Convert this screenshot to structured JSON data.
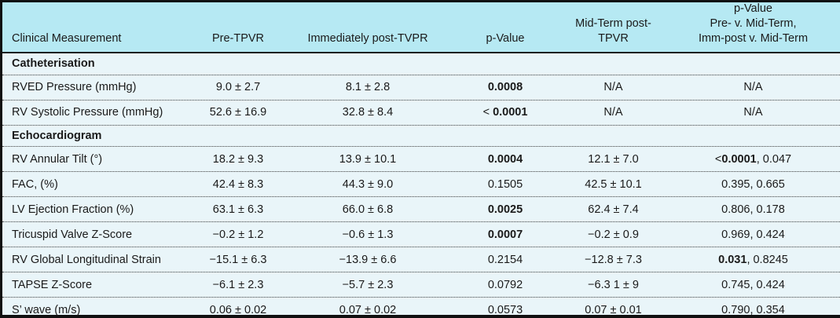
{
  "colors": {
    "header_background": "#b6e9f3",
    "body_background": "#e9f5f9",
    "border": "#101010",
    "text": "#1a1a1a"
  },
  "table": {
    "columns": [
      {
        "label": "Clinical Measurement"
      },
      {
        "label": "Pre-TPVR"
      },
      {
        "label": "Immediately post-TVPR"
      },
      {
        "label": "p-Value"
      },
      {
        "label": "Mid-Term post-TPVR"
      },
      {
        "label": "p-Value\nPre- v. Mid-Term,\nImm-post v. Mid-Term"
      }
    ],
    "rows": [
      {
        "type": "section",
        "label": "Catheterisation"
      },
      {
        "type": "data",
        "label": "RVED Pressure (mmHg)",
        "cells": [
          [
            {
              "t": "9.0 ± 2.7"
            }
          ],
          [
            {
              "t": "8.1 ± 2.8"
            }
          ],
          [
            {
              "t": "0.0008",
              "b": true
            }
          ],
          [
            {
              "t": "N/A"
            }
          ],
          [
            {
              "t": "N/A"
            }
          ]
        ]
      },
      {
        "type": "data",
        "label": "RV Systolic Pressure (mmHg)",
        "cells": [
          [
            {
              "t": "52.6 ± 16.9"
            }
          ],
          [
            {
              "t": "32.8 ± 8.4"
            }
          ],
          [
            {
              "t": "< "
            },
            {
              "t": "0.0001",
              "b": true
            }
          ],
          [
            {
              "t": "N/A"
            }
          ],
          [
            {
              "t": "N/A"
            }
          ]
        ]
      },
      {
        "type": "section",
        "label": "Echocardiogram"
      },
      {
        "type": "data",
        "label": "RV Annular Tilt (°)",
        "cells": [
          [
            {
              "t": "18.2 ± 9.3"
            }
          ],
          [
            {
              "t": "13.9 ± 10.1"
            }
          ],
          [
            {
              "t": "0.0004",
              "b": true
            }
          ],
          [
            {
              "t": "12.1 ± 7.0"
            }
          ],
          [
            {
              "t": "<"
            },
            {
              "t": "0.0001",
              "b": true
            },
            {
              "t": ", 0.047"
            }
          ]
        ]
      },
      {
        "type": "data",
        "label": "FAC, (%)",
        "cells": [
          [
            {
              "t": "42.4 ± 8.3"
            }
          ],
          [
            {
              "t": "44.3 ± 9.0"
            }
          ],
          [
            {
              "t": "0.1505"
            }
          ],
          [
            {
              "t": "42.5 ± 10.1"
            }
          ],
          [
            {
              "t": "0.395, 0.665"
            }
          ]
        ]
      },
      {
        "type": "data",
        "label": "LV Ejection Fraction (%)",
        "cells": [
          [
            {
              "t": "63.1 ± 6.3"
            }
          ],
          [
            {
              "t": "66.0 ± 6.8"
            }
          ],
          [
            {
              "t": "0.0025",
              "b": true
            }
          ],
          [
            {
              "t": "62.4 ± 7.4"
            }
          ],
          [
            {
              "t": "0.806, 0.178"
            }
          ]
        ]
      },
      {
        "type": "data",
        "label": "Tricuspid Valve Z-Score",
        "cells": [
          [
            {
              "t": "−0.2 ± 1.2"
            }
          ],
          [
            {
              "t": "−0.6 ± 1.3"
            }
          ],
          [
            {
              "t": "0.0007",
              "b": true
            }
          ],
          [
            {
              "t": "−0.2 ± 0.9"
            }
          ],
          [
            {
              "t": "0.969, 0.424"
            }
          ]
        ]
      },
      {
        "type": "data",
        "label": "RV Global Longitudinal Strain",
        "cells": [
          [
            {
              "t": "−15.1 ± 6.3"
            }
          ],
          [
            {
              "t": "−13.9 ± 6.6"
            }
          ],
          [
            {
              "t": "0.2154"
            }
          ],
          [
            {
              "t": "−12.8 ± 7.3"
            }
          ],
          [
            {
              "t": "0.031",
              "b": true
            },
            {
              "t": ", 0.8245"
            }
          ]
        ]
      },
      {
        "type": "data",
        "label": "TAPSE Z-Score",
        "cells": [
          [
            {
              "t": "−6.1 ± 2.3"
            }
          ],
          [
            {
              "t": "−5.7 ± 2.3"
            }
          ],
          [
            {
              "t": "0.0792"
            }
          ],
          [
            {
              "t": "−6.3 1 ± 9"
            }
          ],
          [
            {
              "t": "0.745, 0.424"
            }
          ]
        ]
      },
      {
        "type": "data",
        "label": "S’ wave (m/s)",
        "cells": [
          [
            {
              "t": "0.06 ± 0.02"
            }
          ],
          [
            {
              "t": "0.07 ± 0.02"
            }
          ],
          [
            {
              "t": "0.0573"
            }
          ],
          [
            {
              "t": "0.07 ± 0.01"
            }
          ],
          [
            {
              "t": "0.790, 0.354"
            }
          ]
        ]
      }
    ]
  }
}
